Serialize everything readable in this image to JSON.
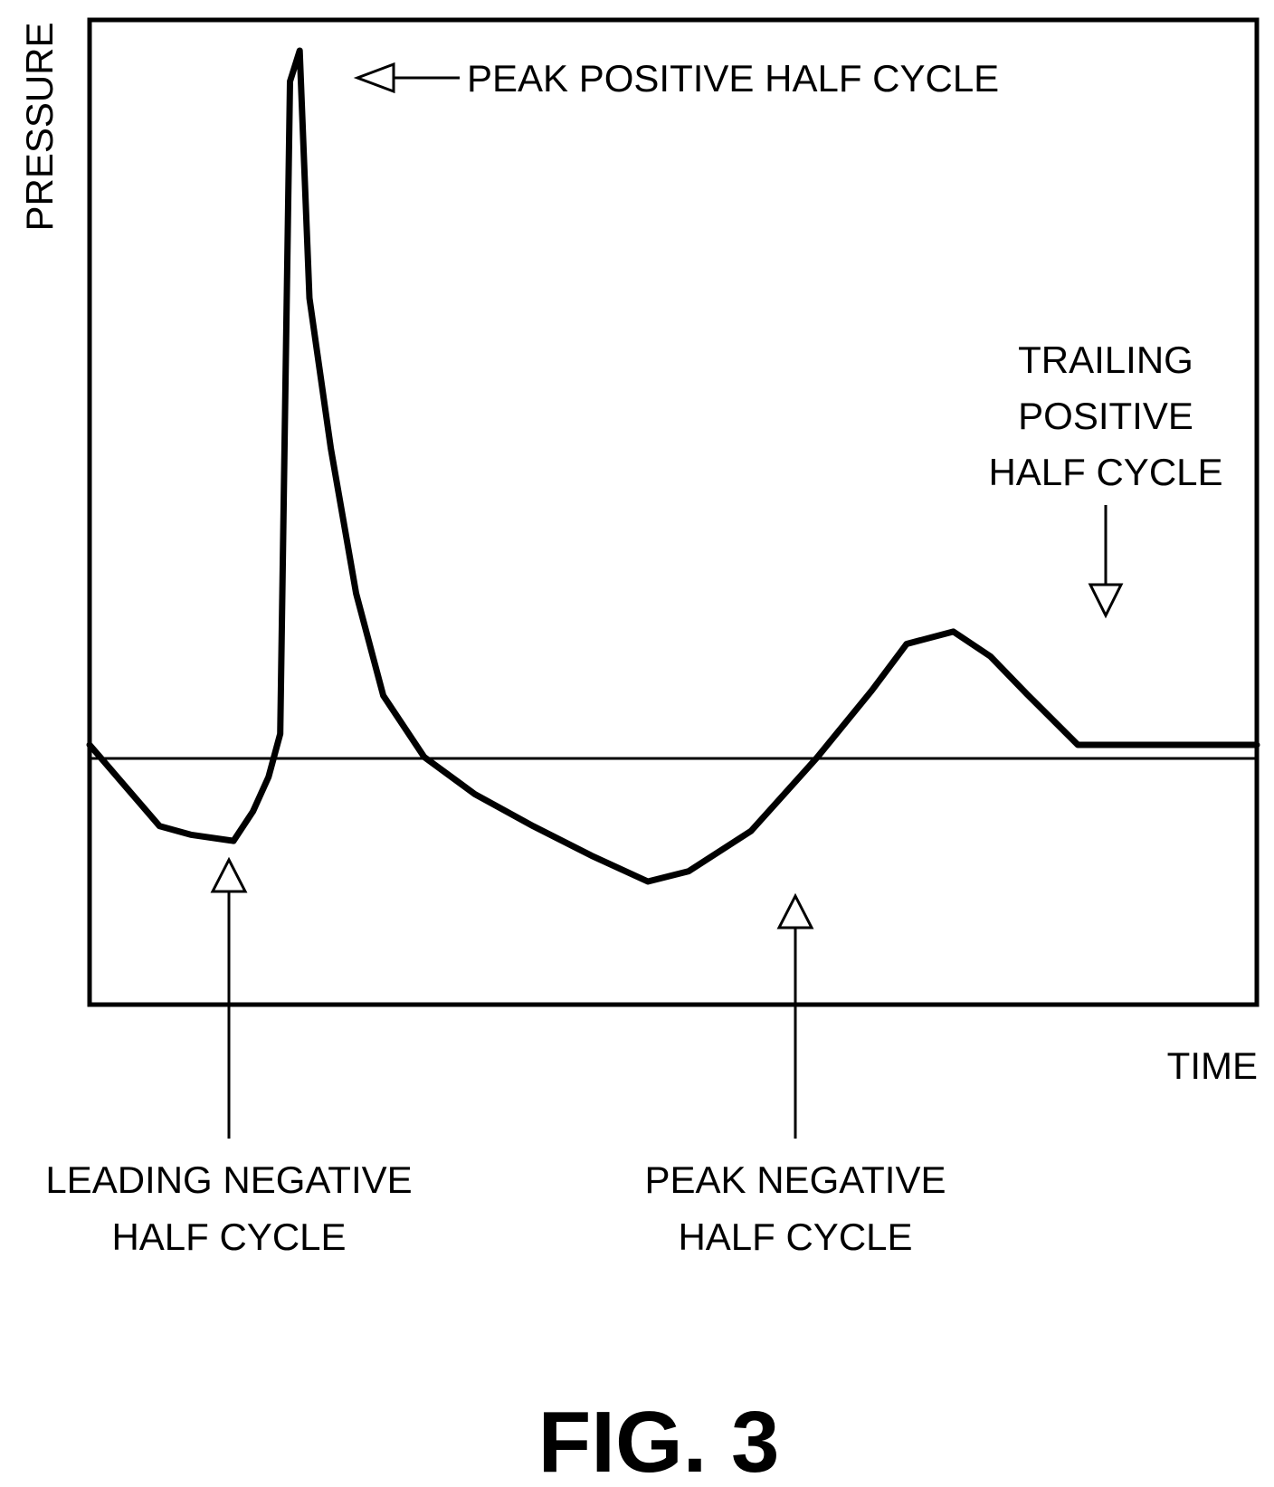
{
  "chart_data": {
    "type": "line",
    "ylabel": "PRESSURE",
    "xlabel": "TIME",
    "grid": false,
    "series": [
      {
        "x": [
          0,
          3.6,
          5.2,
          7.4,
          8.4,
          9.2,
          9.8,
          10.3,
          10.8,
          11.3,
          12.4,
          13.7,
          15.1,
          17.2,
          19.8,
          22.8,
          25.8,
          28.7,
          30.8,
          34.0,
          37.4,
          40.2,
          42.0,
          44.4,
          46.3,
          48.2,
          50.8,
          52.7,
          55.1,
          58.3,
          60.0
        ],
        "y": [
          0.55,
          -2.75,
          -3.1,
          -3.35,
          -2.15,
          -0.75,
          1.0,
          27.5,
          28.75,
          18.7,
          12.6,
          6.7,
          2.55,
          0.06,
          -1.45,
          -2.75,
          -3.95,
          -5.0,
          -4.58,
          -2.95,
          0.04,
          2.75,
          4.65,
          5.15,
          4.15,
          2.6,
          0.55,
          0.55,
          0.55,
          0.55,
          0.55
        ]
      }
    ],
    "xlim": [
      0,
      60
    ],
    "ylim": [
      -10,
      30
    ],
    "baseline": 0,
    "annotations": {
      "peak_positive": "PEAK POSITIVE HALF CYCLE",
      "trailing_positive": [
        "TRAILING",
        "POSITIVE",
        "HALF CYCLE"
      ],
      "leading_negative": [
        "LEADING NEGATIVE",
        "HALF CYCLE"
      ],
      "peak_negative": [
        "PEAK NEGATIVE",
        "HALF CYCLE"
      ]
    }
  },
  "figure_caption": "FIG. 3"
}
